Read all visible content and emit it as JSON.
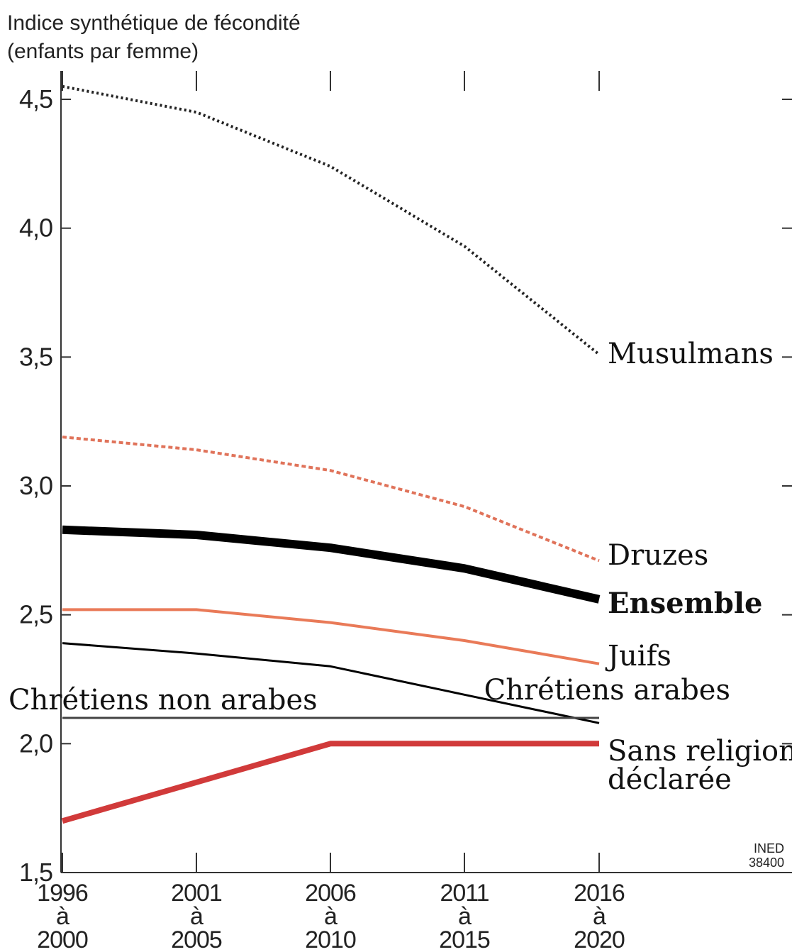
{
  "chart_data": {
    "type": "line",
    "ylabel": [
      "Indice synthétique de fécondité",
      "(enfants par femme)"
    ],
    "ylim": [
      1.5,
      4.5
    ],
    "yticks": [
      "1,5",
      "2,0",
      "2,5",
      "3,0",
      "3,5",
      "4,0",
      "4,5"
    ],
    "ytick_values": [
      1.5,
      2.0,
      2.5,
      3.0,
      3.5,
      4.0,
      4.5
    ],
    "x": [
      [
        "1996",
        "à",
        "2000"
      ],
      [
        "2001",
        "à",
        "2005"
      ],
      [
        "2006",
        "à",
        "2010"
      ],
      [
        "2011",
        "à",
        "2015"
      ],
      [
        "2016",
        "à",
        "2020"
      ]
    ],
    "series": [
      {
        "name": "Musulmans",
        "values": [
          4.55,
          4.45,
          4.24,
          3.93,
          3.51
        ],
        "color": "#222222",
        "style": "dotted",
        "bold": false
      },
      {
        "name": "Druzes",
        "values": [
          3.19,
          3.14,
          3.06,
          2.92,
          2.71
        ],
        "color": "#e0735a",
        "style": "dashed",
        "bold": false
      },
      {
        "name": "Ensemble",
        "values": [
          2.83,
          2.81,
          2.76,
          2.68,
          2.56
        ],
        "color": "#000000",
        "style": "solid-thick",
        "bold": true
      },
      {
        "name": "Juifs",
        "values": [
          2.52,
          2.52,
          2.47,
          2.4,
          2.31
        ],
        "color": "#e97a58",
        "style": "solid",
        "bold": false
      },
      {
        "name": "Chrétiens arabes",
        "values": [
          2.39,
          2.35,
          2.3,
          2.19,
          2.08
        ],
        "color": "#000000",
        "style": "solid-thin",
        "bold": false
      },
      {
        "name": "Chrétiens non arabes",
        "values": [
          2.1,
          2.1,
          2.1,
          2.1,
          2.1
        ],
        "color": "#444444",
        "style": "solid-thin",
        "bold": false
      },
      {
        "name": "Sans religion déclarée",
        "name_lines": [
          "Sans religion",
          "déclarée"
        ],
        "values": [
          1.7,
          1.85,
          2.0,
          2.0,
          2.0
        ],
        "color": "#d13a3a",
        "style": "solid-medium",
        "bold": false
      }
    ],
    "grid": false,
    "source": [
      "INED",
      "38400"
    ]
  }
}
